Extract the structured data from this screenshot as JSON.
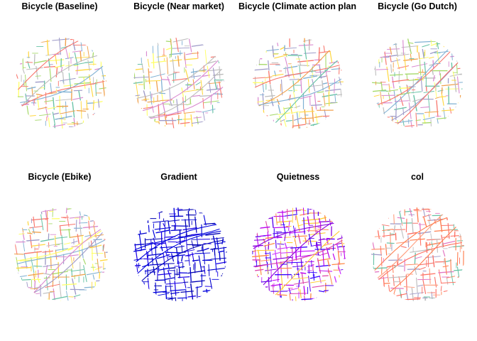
{
  "figure": {
    "layout": "2 rows x 4 columns of small-multiple maps"
  },
  "chart_data": [
    {
      "type": "map",
      "title": "Bicycle (Baseline)",
      "palette": [
        "#f8766d",
        "#f0a04b",
        "#ffd740",
        "#ffff66",
        "#a6d96a",
        "#66c2a5",
        "#80b1d3",
        "#9e9ac8",
        "#d98ad0",
        "#bdbdbd"
      ],
      "seed": 11,
      "density": 1.0
    },
    {
      "type": "map",
      "title": "Bicycle (Near market)",
      "palette": [
        "#f8766d",
        "#f0a04b",
        "#ffd740",
        "#ffff66",
        "#a6d96a",
        "#66c2a5",
        "#80b1d3",
        "#9e9ac8",
        "#d98ad0",
        "#bdbdbd"
      ],
      "seed": 23,
      "density": 1.0
    },
    {
      "type": "map",
      "title": "Bicycle (Climate action plan",
      "palette": [
        "#f8766d",
        "#f0a04b",
        "#ffd740",
        "#ffff66",
        "#a6d96a",
        "#66c2a5",
        "#80b1d3",
        "#9e9ac8",
        "#d98ad0",
        "#bdbdbd"
      ],
      "seed": 37,
      "density": 1.0
    },
    {
      "type": "map",
      "title": "Bicycle (Go Dutch)",
      "palette": [
        "#f8766d",
        "#f0a04b",
        "#ffd740",
        "#ffff66",
        "#a6d96a",
        "#66c2a5",
        "#80b1d3",
        "#9e9ac8",
        "#d98ad0",
        "#bdbdbd"
      ],
      "seed": 41,
      "density": 1.0
    },
    {
      "type": "map",
      "title": "Bicycle (Ebike)",
      "palette": [
        "#f8766d",
        "#f0a04b",
        "#ffd740",
        "#ffff66",
        "#a6d96a",
        "#66c2a5",
        "#80b1d3",
        "#9e9ac8",
        "#d98ad0",
        "#bdbdbd"
      ],
      "seed": 53,
      "density": 1.0
    },
    {
      "type": "map",
      "title": "Gradient",
      "palette": [
        "#0000cc",
        "#0000dd",
        "#1a00e6",
        "#0000b3"
      ],
      "seed": 61,
      "density": 1.25
    },
    {
      "type": "map",
      "title": "Quietness",
      "palette": [
        "#3300ff",
        "#5500ee",
        "#8800dd",
        "#bb00ee",
        "#dd44aa",
        "#ff8844",
        "#ffcc33",
        "#cc33ff"
      ],
      "seed": 73,
      "density": 1.25
    },
    {
      "type": "map",
      "title": "col",
      "palette": [
        "#ff7f50",
        "#f8766d",
        "#e377c2",
        "#ff9f7f",
        "#ff6f61",
        "#66c2a5",
        "#9e9ac8",
        "#bdbdbd"
      ],
      "seed": 89,
      "density": 1.15
    }
  ]
}
